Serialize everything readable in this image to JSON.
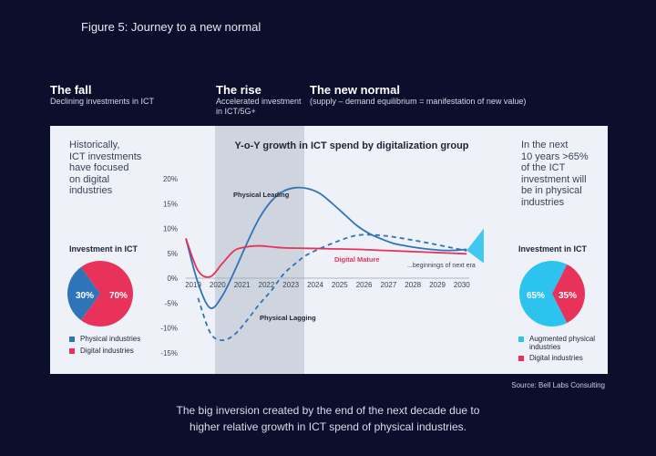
{
  "figure_title": "Figure 5: Journey to a new normal",
  "phases": [
    {
      "title": "The fall",
      "subtitle": "Declining investments in ICT"
    },
    {
      "title": "The rise",
      "subtitle_line1": "Accelerated investment",
      "subtitle_line2": "in ICT/5G+"
    },
    {
      "title": "The new normal",
      "subtitle": "(supply – demand equilibrium = manifestation of new value)"
    }
  ],
  "left_note": [
    "Historically,",
    "ICT investments",
    "have focused",
    "on digital",
    "industries"
  ],
  "right_note": [
    "In the next",
    "10 years >65%",
    "of the ICT",
    "investment will",
    "be in physical",
    "industries"
  ],
  "left_pie": {
    "title": "Investment in ICT",
    "slices": [
      {
        "label": "Physical industries",
        "value": 30,
        "text": "30%",
        "color": "#2f74b8"
      },
      {
        "label": "Digital industries",
        "value": 70,
        "text": "70%",
        "color": "#e8325a"
      }
    ]
  },
  "right_pie": {
    "title": "Investment in ICT",
    "slices": [
      {
        "label": "Augmented physical industries",
        "value": 65,
        "text": "65%",
        "color": "#2cc3ef"
      },
      {
        "label": "Digital industries",
        "value": 35,
        "text": "35%",
        "color": "#e8325a"
      }
    ]
  },
  "chart_data": {
    "type": "line",
    "title": "Y-o-Y growth in ICT spend by digitalization group",
    "xlabel": "",
    "ylabel": "",
    "x_ticks": [
      "2019",
      "2020",
      "2021",
      "2022",
      "2023",
      "2024",
      "2025",
      "2026",
      "2027",
      "2028",
      "2029",
      "2030"
    ],
    "y_ticks": [
      "20%",
      "15%",
      "10%",
      "5%",
      "0%",
      "-5%",
      "-10%",
      "-15%"
    ],
    "ylim": [
      -15,
      20
    ],
    "xlim": [
      2019,
      2031.2
    ],
    "series": [
      {
        "name": "Physical Leading",
        "color": "#2f74b8",
        "style": "solid",
        "x": [
          2019,
          2019.5,
          2020,
          2020.5,
          2021,
          2021.5,
          2022,
          2022.5,
          2023,
          2023.5,
          2024,
          2024.5,
          2025,
          2025.5,
          2026,
          2026.5,
          2027,
          2027.5,
          2028,
          2028.5,
          2029,
          2029.5,
          2030,
          2030.5
        ],
        "y": [
          8,
          -1,
          -6,
          -3.5,
          1.5,
          7,
          12,
          15.5,
          17.5,
          18.2,
          18,
          17,
          15,
          12.8,
          10.6,
          9,
          7.9,
          7,
          6.5,
          6.1,
          5.8,
          5.6,
          5.6,
          5.8
        ]
      },
      {
        "name": "Digital Mature",
        "color": "#e8325a",
        "style": "solid",
        "x": [
          2019,
          2019.5,
          2020,
          2020.5,
          2021,
          2021.5,
          2022,
          2022.5,
          2023,
          2024,
          2025,
          2026,
          2027,
          2028,
          2029,
          2030,
          2030.5
        ],
        "y": [
          8,
          1.5,
          0.3,
          3,
          5.6,
          6.3,
          6.5,
          6.3,
          6.1,
          6.0,
          5.9,
          5.8,
          5.6,
          5.4,
          5.2,
          5.0,
          4.9
        ]
      },
      {
        "name": "Physical Lagging",
        "color": "#2f74b8",
        "style": "dashed",
        "x": [
          2019.5,
          2020,
          2020.5,
          2021,
          2021.5,
          2022,
          2022.5,
          2023,
          2023.5,
          2024,
          2025,
          2026,
          2027,
          2028,
          2029,
          2030,
          2030.5
        ],
        "y": [
          -4,
          -11,
          -12.5,
          -11.3,
          -8.5,
          -5.3,
          -2.5,
          0.8,
          3,
          4.8,
          7,
          8.6,
          8.6,
          7.9,
          7,
          6,
          5.5
        ]
      }
    ],
    "annotations": [
      "...beginnings of next era"
    ]
  },
  "source": "Source: Bell Labs Consulting",
  "caption": [
    "The big inversion created by the end of the next decade due to",
    "higher relative growth in ICT spend of physical industries."
  ]
}
